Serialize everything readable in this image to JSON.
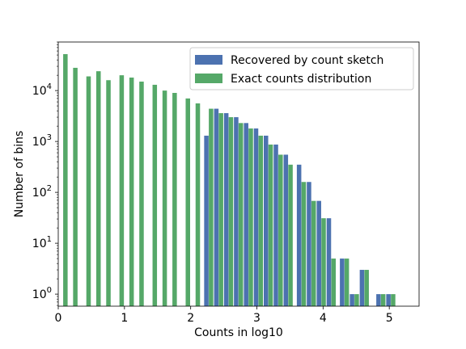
{
  "chart_data": {
    "type": "bar",
    "xlabel": "Counts in log10",
    "ylabel": "Number of bins",
    "xlim": [
      0,
      5.45
    ],
    "ylim": [
      0.58,
      90000
    ],
    "yscale": "log",
    "grid": false,
    "legend_position": "top-right",
    "x_ticks": [
      0,
      1,
      2,
      3,
      4,
      5
    ],
    "x_tick_labels": [
      "0",
      "1",
      "2",
      "3",
      "4",
      "5"
    ],
    "y_ticks": [
      1,
      10,
      100,
      1000,
      10000
    ],
    "y_tick_labels": [
      {
        "base": "10",
        "exp": "0"
      },
      {
        "base": "10",
        "exp": "1"
      },
      {
        "base": "10",
        "exp": "2"
      },
      {
        "base": "10",
        "exp": "3"
      },
      {
        "base": "10",
        "exp": "4"
      }
    ],
    "bin_width": 0.15,
    "series": [
      {
        "name": "Recovered by count sketch",
        "color": "#4c72b0",
        "bins": [
          {
            "x": 2.2,
            "value": 1300
          },
          {
            "x": 2.35,
            "value": 4400
          },
          {
            "x": 2.5,
            "value": 3600
          },
          {
            "x": 2.65,
            "value": 3000
          },
          {
            "x": 2.8,
            "value": 2300
          },
          {
            "x": 2.95,
            "value": 1800
          },
          {
            "x": 3.1,
            "value": 1300
          },
          {
            "x": 3.25,
            "value": 870
          },
          {
            "x": 3.4,
            "value": 550
          },
          {
            "x": 3.6,
            "value": 350
          },
          {
            "x": 3.75,
            "value": 160
          },
          {
            "x": 3.9,
            "value": 68
          },
          {
            "x": 4.05,
            "value": 31
          },
          {
            "x": 4.25,
            "value": 5
          },
          {
            "x": 4.4,
            "value": 1
          },
          {
            "x": 4.55,
            "value": 3
          },
          {
            "x": 4.8,
            "value": 1
          },
          {
            "x": 4.95,
            "value": 1
          }
        ]
      },
      {
        "name": "Exact counts distribution",
        "color": "#55a868",
        "bins": [
          {
            "x": 0.0,
            "value": 52000
          },
          {
            "x": 0.15,
            "value": 28000
          },
          {
            "x": 0.35,
            "value": 19000
          },
          {
            "x": 0.5,
            "value": 24000
          },
          {
            "x": 0.65,
            "value": 16000
          },
          {
            "x": 0.85,
            "value": 20000
          },
          {
            "x": 1.0,
            "value": 18000
          },
          {
            "x": 1.15,
            "value": 15000
          },
          {
            "x": 1.35,
            "value": 13000
          },
          {
            "x": 1.5,
            "value": 10000
          },
          {
            "x": 1.65,
            "value": 9000
          },
          {
            "x": 1.85,
            "value": 7000
          },
          {
            "x": 2.0,
            "value": 5600
          },
          {
            "x": 2.2,
            "value": 4400
          },
          {
            "x": 2.35,
            "value": 3600
          },
          {
            "x": 2.5,
            "value": 3000
          },
          {
            "x": 2.65,
            "value": 2300
          },
          {
            "x": 2.8,
            "value": 1800
          },
          {
            "x": 2.95,
            "value": 1300
          },
          {
            "x": 3.1,
            "value": 870
          },
          {
            "x": 3.25,
            "value": 550
          },
          {
            "x": 3.4,
            "value": 350
          },
          {
            "x": 3.6,
            "value": 160
          },
          {
            "x": 3.75,
            "value": 68
          },
          {
            "x": 3.9,
            "value": 31
          },
          {
            "x": 4.05,
            "value": 5
          },
          {
            "x": 4.25,
            "value": 5
          },
          {
            "x": 4.4,
            "value": 1
          },
          {
            "x": 4.55,
            "value": 3
          },
          {
            "x": 4.8,
            "value": 1
          },
          {
            "x": 4.95,
            "value": 1
          }
        ]
      }
    ]
  }
}
